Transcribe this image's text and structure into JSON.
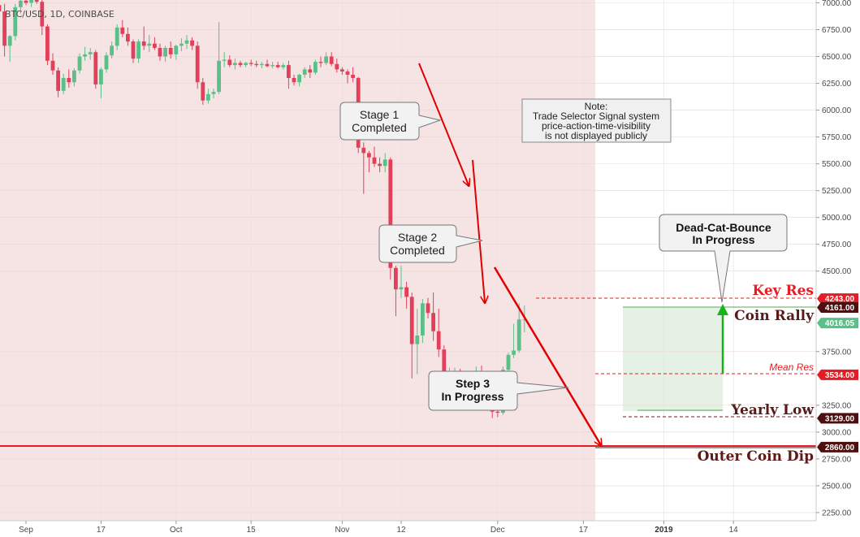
{
  "header": {
    "title": "BTC/USD, 1D, COINBASE"
  },
  "colors": {
    "up": "#5bbf8a",
    "down": "#e2405a",
    "bg_shade": "#f6e4e4",
    "red_line": "#e51c23",
    "arrow_red": "#e00000",
    "arrow_green": "#19b219",
    "dark_label": "#5b1a1a"
  },
  "chart_data": {
    "type": "candlestick",
    "title": "BTC/USD, 1D, COINBASE",
    "ylim": [
      2100,
      7050
    ],
    "y_ticks": [
      {
        "v": 7000,
        "label": "7000.00"
      },
      {
        "v": 6750,
        "label": "6750.00"
      },
      {
        "v": 6500,
        "label": "6500.00"
      },
      {
        "v": 6250,
        "label": "6250.00"
      },
      {
        "v": 6000,
        "label": "6000.00"
      },
      {
        "v": 5750,
        "label": "5750.00"
      },
      {
        "v": 5500,
        "label": "5500.00"
      },
      {
        "v": 5250,
        "label": "5250.00"
      },
      {
        "v": 5000,
        "label": "5000.00"
      },
      {
        "v": 4750,
        "label": "4750.00"
      },
      {
        "v": 4500,
        "label": "4500.00"
      },
      {
        "v": 3750,
        "label": "3750.00"
      },
      {
        "v": 3250,
        "label": "3250.00"
      },
      {
        "v": 3000,
        "label": "3000.00"
      },
      {
        "v": 2750,
        "label": "2750.00"
      },
      {
        "v": 2500,
        "label": "2500.00"
      },
      {
        "v": 2250,
        "label": "2250.00"
      }
    ],
    "x_ticks": [
      {
        "day": 3,
        "label": "Sep",
        "bold": false
      },
      {
        "day": 17,
        "label": "17",
        "bold": false
      },
      {
        "day": 31,
        "label": "Oct",
        "bold": false
      },
      {
        "day": 45,
        "label": "15",
        "bold": false
      },
      {
        "day": 62,
        "label": "Nov",
        "bold": false
      },
      {
        "day": 73,
        "label": "12",
        "bold": false
      },
      {
        "day": 91,
        "label": "Dec",
        "bold": false
      },
      {
        "day": 107,
        "label": "17",
        "bold": false
      },
      {
        "day": 122,
        "label": "2019",
        "bold": true
      },
      {
        "day": 135,
        "label": "14",
        "bold": false
      }
    ],
    "badges": [
      {
        "label": "4243.00",
        "v": 4243,
        "color": "#e51c23"
      },
      {
        "label": "4161.00",
        "v": 4161,
        "color": "#4d1010"
      },
      {
        "label": "4016.05",
        "v": 4016,
        "color": "#5bbf8a"
      },
      {
        "label": "3534.00",
        "v": 3534,
        "color": "#e51c23"
      },
      {
        "label": "3129.00",
        "v": 3129,
        "color": "#4d1010"
      },
      {
        "label": "2860.00",
        "v": 2860,
        "color": "#4d1010"
      }
    ],
    "levels": {
      "key_res": {
        "label": "Key Res",
        "v": 4243
      },
      "coin_rally": {
        "label": "Coin Rally",
        "v": 4161
      },
      "mean_res": {
        "label": "Mean Res",
        "v": 3534
      },
      "yearly_low": {
        "label": "Yearly Low",
        "v": 3129
      },
      "outer_coin_dip": {
        "label": "Outer Coin Dip",
        "v": 2860
      }
    },
    "candles": [
      [
        -3,
        7220,
        7260,
        6920,
        6990
      ],
      [
        -2,
        6980,
        7050,
        6880,
        6920
      ],
      [
        -1,
        6920,
        6990,
        6500,
        6600
      ],
      [
        0,
        6600,
        6700,
        6450,
        6690
      ],
      [
        1,
        6690,
        6990,
        6650,
        6960
      ],
      [
        2,
        6960,
        7060,
        6900,
        7020
      ],
      [
        3,
        7020,
        7080,
        6980,
        7000
      ],
      [
        4,
        7000,
        7150,
        6960,
        7120
      ],
      [
        5,
        7120,
        7180,
        6990,
        7010
      ],
      [
        6,
        7010,
        7060,
        6700,
        6780
      ],
      [
        7,
        6780,
        6800,
        6420,
        6460
      ],
      [
        8,
        6460,
        6530,
        6330,
        6370
      ],
      [
        9,
        6370,
        6400,
        6120,
        6180
      ],
      [
        10,
        6180,
        6340,
        6150,
        6300
      ],
      [
        11,
        6300,
        6380,
        6210,
        6260
      ],
      [
        12,
        6260,
        6390,
        6220,
        6370
      ],
      [
        13,
        6370,
        6530,
        6340,
        6500
      ],
      [
        14,
        6500,
        6590,
        6460,
        6520
      ],
      [
        15,
        6520,
        6580,
        6470,
        6540
      ],
      [
        16,
        6540,
        6560,
        6200,
        6240
      ],
      [
        17,
        6240,
        6400,
        6110,
        6380
      ],
      [
        18,
        6380,
        6540,
        6350,
        6510
      ],
      [
        19,
        6510,
        6640,
        6480,
        6600
      ],
      [
        20,
        6600,
        6800,
        6560,
        6770
      ],
      [
        21,
        6770,
        6840,
        6680,
        6710
      ],
      [
        22,
        6710,
        6770,
        6600,
        6640
      ],
      [
        23,
        6640,
        6660,
        6440,
        6480
      ],
      [
        24,
        6480,
        6660,
        6440,
        6640
      ],
      [
        25,
        6640,
        6780,
        6560,
        6600
      ],
      [
        26,
        6600,
        6700,
        6540,
        6620
      ],
      [
        27,
        6620,
        6680,
        6560,
        6580
      ],
      [
        28,
        6580,
        6620,
        6460,
        6500
      ],
      [
        29,
        6500,
        6600,
        6450,
        6580
      ],
      [
        30,
        6580,
        6640,
        6480,
        6520
      ],
      [
        31,
        6520,
        6610,
        6470,
        6600
      ],
      [
        32,
        6600,
        6670,
        6550,
        6620
      ],
      [
        33,
        6620,
        6700,
        6570,
        6650
      ],
      [
        34,
        6650,
        6680,
        6560,
        6600
      ],
      [
        35,
        6600,
        6640,
        6200,
        6260
      ],
      [
        36,
        6260,
        6300,
        6050,
        6090
      ],
      [
        37,
        6090,
        6200,
        6060,
        6150
      ],
      [
        38,
        6150,
        6200,
        6110,
        6170
      ],
      [
        39,
        6170,
        6820,
        6150,
        6460
      ],
      [
        40,
        6460,
        6540,
        6400,
        6470
      ],
      [
        41,
        6470,
        6510,
        6400,
        6420
      ],
      [
        42,
        6420,
        6480,
        6380,
        6440
      ],
      [
        43,
        6440,
        6460,
        6400,
        6420
      ],
      [
        44,
        6420,
        6450,
        6400,
        6440
      ],
      [
        45,
        6440,
        6470,
        6410,
        6430
      ],
      [
        46,
        6430,
        6460,
        6400,
        6420
      ],
      [
        47,
        6420,
        6450,
        6390,
        6430
      ],
      [
        48,
        6430,
        6470,
        6400,
        6410
      ],
      [
        49,
        6410,
        6450,
        6390,
        6420
      ],
      [
        50,
        6420,
        6450,
        6390,
        6400
      ],
      [
        51,
        6400,
        6440,
        6380,
        6420
      ],
      [
        52,
        6420,
        6460,
        6200,
        6300
      ],
      [
        53,
        6300,
        6330,
        6230,
        6260
      ],
      [
        54,
        6260,
        6340,
        6220,
        6330
      ],
      [
        55,
        6330,
        6400,
        6300,
        6380
      ],
      [
        56,
        6380,
        6420,
        6300,
        6350
      ],
      [
        57,
        6350,
        6470,
        6330,
        6450
      ],
      [
        58,
        6450,
        6500,
        6400,
        6440
      ],
      [
        59,
        6440,
        6540,
        6420,
        6500
      ],
      [
        60,
        6500,
        6540,
        6410,
        6430
      ],
      [
        61,
        6430,
        6480,
        6350,
        6380
      ],
      [
        62,
        6380,
        6400,
        6330,
        6360
      ],
      [
        63,
        6360,
        6380,
        6250,
        6330
      ],
      [
        64,
        6330,
        6400,
        6260,
        6300
      ],
      [
        65,
        6300,
        6310,
        5600,
        5650
      ],
      [
        66,
        5650,
        5700,
        5220,
        5600
      ],
      [
        67,
        5600,
        5620,
        5420,
        5560
      ],
      [
        68,
        5560,
        5660,
        5470,
        5500
      ],
      [
        69,
        5500,
        5560,
        5420,
        5480
      ],
      [
        70,
        5480,
        5600,
        5420,
        5540
      ],
      [
        71,
        5540,
        5560,
        4420,
        4530
      ],
      [
        72,
        4530,
        4550,
        4080,
        4330
      ],
      [
        73,
        4330,
        4550,
        4250,
        4350
      ],
      [
        74,
        4350,
        4400,
        4150,
        4260
      ],
      [
        75,
        4260,
        4300,
        3500,
        3820
      ],
      [
        76,
        3820,
        4150,
        3540,
        3900
      ],
      [
        77,
        3900,
        4240,
        3830,
        4200
      ],
      [
        78,
        4200,
        4250,
        4060,
        4110
      ],
      [
        79,
        4110,
        4300,
        3850,
        3940
      ],
      [
        80,
        3940,
        4150,
        3700,
        3770
      ],
      [
        81,
        3770,
        3810,
        3420,
        3450
      ],
      [
        82,
        3450,
        3600,
        3340,
        3480
      ],
      [
        83,
        3480,
        3600,
        3220,
        3500
      ],
      [
        84,
        3500,
        3590,
        3300,
        3420
      ],
      [
        85,
        3420,
        3520,
        3310,
        3440
      ],
      [
        86,
        3440,
        3560,
        3400,
        3460
      ],
      [
        87,
        3460,
        3610,
        3410,
        3560
      ],
      [
        88,
        3560,
        3620,
        3380,
        3420
      ],
      [
        89,
        3420,
        3440,
        3260,
        3300
      ],
      [
        90,
        3300,
        3340,
        3130,
        3190
      ],
      [
        91,
        3190,
        3240,
        3140,
        3180
      ],
      [
        92,
        3180,
        3610,
        3160,
        3580
      ],
      [
        93,
        3580,
        3740,
        3490,
        3720
      ],
      [
        94,
        3720,
        4010,
        3690,
        3760
      ],
      [
        95,
        3760,
        4200,
        3740,
        4050
      ],
      [
        96,
        4050,
        4180,
        3930,
        4050
      ]
    ]
  },
  "annotations": {
    "stage1": {
      "line1": "Stage 1",
      "line2": "Completed"
    },
    "stage2": {
      "line1": "Stage 2",
      "line2": "Completed"
    },
    "step3": {
      "line1": "Step 3",
      "line2": "In Progress"
    },
    "dcb": {
      "line1": "Dead-Cat-Bounce",
      "line2": "In Progress"
    },
    "note": {
      "line1": "Note:",
      "line2": "Trade Selector Signal system",
      "line3": "price-action-time-visibility",
      "line4": "is not displayed publicly"
    }
  }
}
